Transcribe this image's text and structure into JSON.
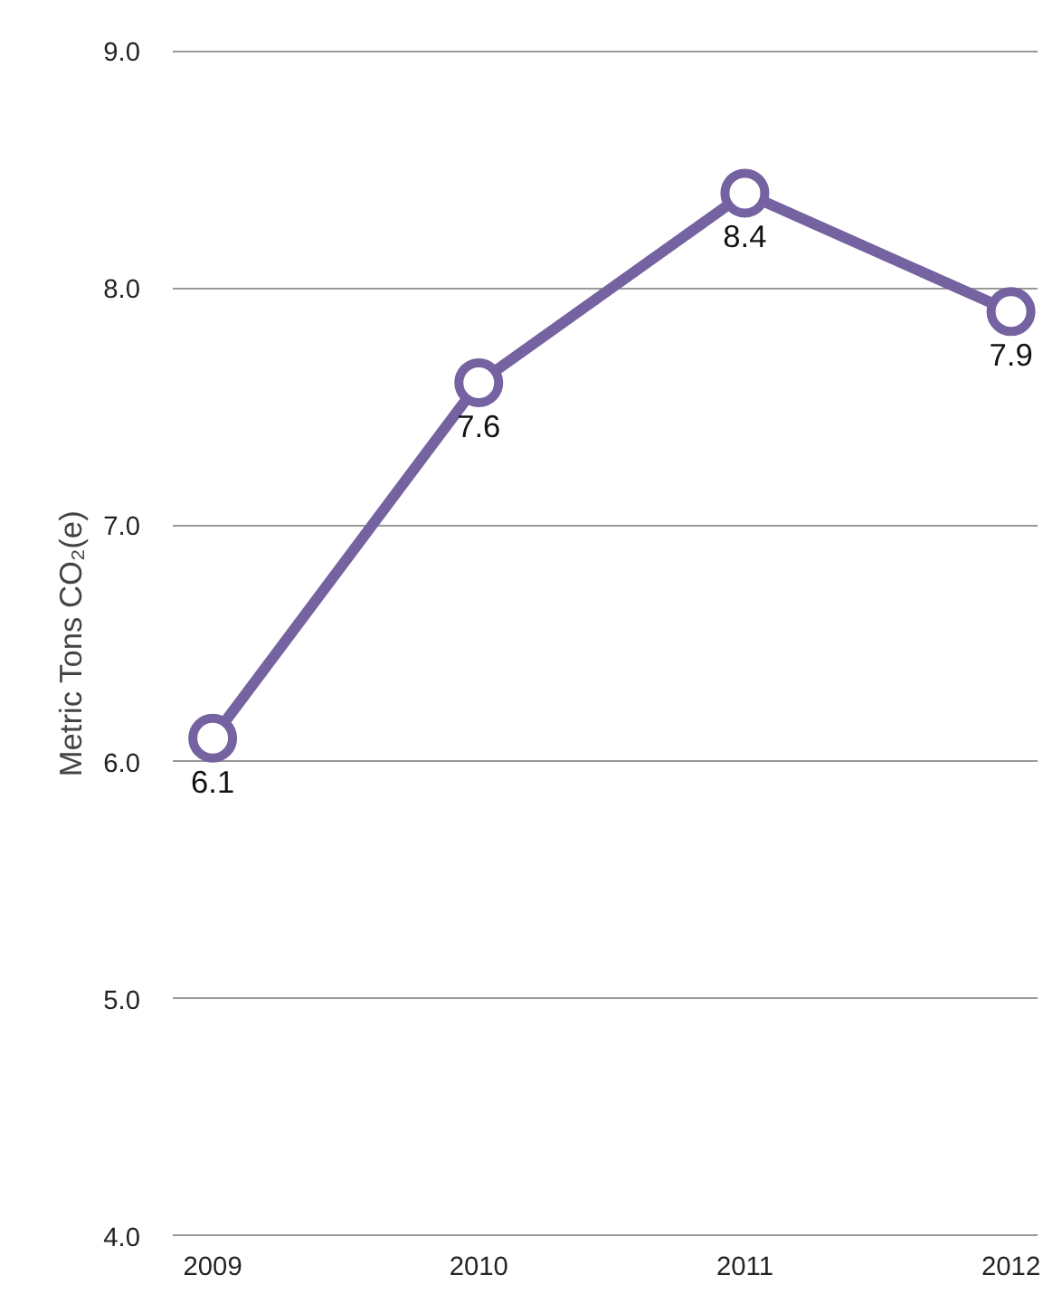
{
  "chart_data": {
    "type": "line",
    "ylabel": "Metric Tons CO₂(e)",
    "x": [
      2009,
      2010,
      2011,
      2012
    ],
    "series": [
      {
        "color": "#7463a0",
        "values": [
          6.1,
          7.6,
          8.4,
          7.9
        ]
      }
    ],
    "xlim": [
      2008.85,
      2012.1
    ],
    "xticks": [
      2009,
      2010,
      2011,
      2012
    ],
    "ylim": [
      3.98,
      9.02
    ],
    "yticks": [
      {
        "value": 4,
        "label": "4.0"
      },
      {
        "value": 5,
        "label": "5.0"
      },
      {
        "value": 6,
        "label": "6.0"
      },
      {
        "value": 7,
        "label": "7.0"
      },
      {
        "value": 8,
        "label": "8.0"
      },
      {
        "value": 9,
        "label": "9.0"
      }
    ],
    "grid": "y",
    "marker": "circle",
    "line_style": "solid",
    "data_labels": true
  }
}
